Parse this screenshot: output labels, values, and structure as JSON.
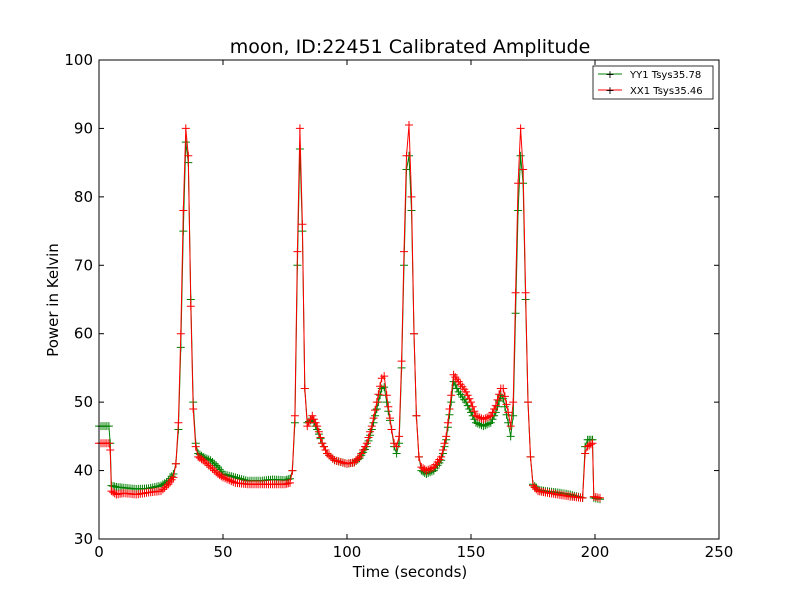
{
  "chart_data": {
    "type": "line",
    "title": "moon, ID:22451 Calibrated Amplitude",
    "xlabel": "Time (seconds)",
    "ylabel": "Power in Kelvin",
    "xlim": [
      0,
      250
    ],
    "ylim": [
      30,
      100
    ],
    "xticks": [
      0,
      50,
      100,
      150,
      200,
      250
    ],
    "yticks": [
      30,
      40,
      50,
      60,
      70,
      80,
      90,
      100
    ],
    "grid": false,
    "legend_position": "top-right",
    "marker": "+",
    "series": [
      {
        "name": "YY1 Tsys35.78",
        "color": "#008000",
        "points": [
          [
            0,
            46.5
          ],
          [
            4,
            46.5
          ],
          [
            4.5,
            44
          ],
          [
            5,
            37.8
          ],
          [
            7,
            37.6
          ],
          [
            10,
            37.5
          ],
          [
            15,
            37.3
          ],
          [
            20,
            37.4
          ],
          [
            25,
            37.8
          ],
          [
            28,
            38.5
          ],
          [
            30,
            39.5
          ],
          [
            31,
            41
          ],
          [
            32,
            46
          ],
          [
            33,
            58
          ],
          [
            34,
            75
          ],
          [
            35,
            88
          ],
          [
            36,
            85
          ],
          [
            37,
            65
          ],
          [
            38,
            50
          ],
          [
            39,
            44
          ],
          [
            40,
            42.5
          ],
          [
            42,
            42
          ],
          [
            45,
            41.5
          ],
          [
            48,
            40.5
          ],
          [
            50,
            39.5
          ],
          [
            55,
            39
          ],
          [
            60,
            38.5
          ],
          [
            65,
            38.5
          ],
          [
            70,
            38.7
          ],
          [
            75,
            38.6
          ],
          [
            77,
            38.8
          ],
          [
            78,
            40
          ],
          [
            79,
            47
          ],
          [
            80,
            70
          ],
          [
            81,
            87
          ],
          [
            82,
            75
          ],
          [
            83,
            52
          ],
          [
            84,
            47
          ],
          [
            86,
            47.5
          ],
          [
            88,
            46
          ],
          [
            90,
            44
          ],
          [
            92,
            42.5
          ],
          [
            95,
            41.5
          ],
          [
            100,
            41
          ],
          [
            103,
            41.2
          ],
          [
            105,
            41.8
          ],
          [
            108,
            43.5
          ],
          [
            110,
            46
          ],
          [
            112,
            49
          ],
          [
            114,
            52
          ],
          [
            115,
            52.2
          ],
          [
            116,
            50
          ],
          [
            118,
            46
          ],
          [
            119,
            43.5
          ],
          [
            120,
            42.5
          ],
          [
            121,
            44
          ],
          [
            122,
            55
          ],
          [
            123,
            70
          ],
          [
            124,
            84
          ],
          [
            125,
            86
          ],
          [
            126,
            78
          ],
          [
            127,
            60
          ],
          [
            128,
            48
          ],
          [
            129,
            42
          ],
          [
            130,
            40
          ],
          [
            132,
            39.5
          ],
          [
            135,
            40
          ],
          [
            138,
            41.5
          ],
          [
            140,
            44.5
          ],
          [
            142,
            50
          ],
          [
            143,
            53
          ],
          [
            145,
            51.5
          ],
          [
            148,
            50
          ],
          [
            150,
            48.5
          ],
          [
            152,
            47
          ],
          [
            155,
            46.5
          ],
          [
            158,
            47
          ],
          [
            160,
            48.5
          ],
          [
            162,
            51
          ],
          [
            163,
            50.5
          ],
          [
            165,
            47
          ],
          [
            166,
            45
          ],
          [
            167,
            48
          ],
          [
            168,
            63
          ],
          [
            169,
            78
          ],
          [
            170,
            86
          ],
          [
            171,
            82
          ],
          [
            172,
            65
          ],
          [
            173,
            50
          ],
          [
            174,
            42
          ],
          [
            175,
            38
          ],
          [
            177,
            37.2
          ],
          [
            180,
            37
          ],
          [
            185,
            36.8
          ],
          [
            190,
            36.5
          ],
          [
            195,
            36
          ],
          [
            196,
            43.5
          ],
          [
            197,
            44.5
          ],
          [
            199,
            44.5
          ],
          [
            199.5,
            36
          ],
          [
            202,
            35.8
          ]
        ]
      },
      {
        "name": "XX1 Tsys35.46",
        "color": "#ff0000",
        "points": [
          [
            0,
            44
          ],
          [
            4,
            44
          ],
          [
            4.5,
            43
          ],
          [
            5,
            37
          ],
          [
            7,
            36.5
          ],
          [
            10,
            36.7
          ],
          [
            15,
            36.5
          ],
          [
            20,
            36.8
          ],
          [
            25,
            37
          ],
          [
            28,
            38
          ],
          [
            30,
            39
          ],
          [
            31,
            41
          ],
          [
            32,
            47
          ],
          [
            33,
            60
          ],
          [
            34,
            78
          ],
          [
            35,
            90
          ],
          [
            36,
            86
          ],
          [
            37,
            64
          ],
          [
            38,
            49
          ],
          [
            39,
            43.5
          ],
          [
            40,
            42
          ],
          [
            42,
            41.5
          ],
          [
            45,
            40.5
          ],
          [
            48,
            39.5
          ],
          [
            50,
            39
          ],
          [
            55,
            38.2
          ],
          [
            60,
            38
          ],
          [
            65,
            38
          ],
          [
            70,
            38
          ],
          [
            75,
            38
          ],
          [
            77,
            38.2
          ],
          [
            78,
            40
          ],
          [
            79,
            48
          ],
          [
            80,
            72
          ],
          [
            81,
            90
          ],
          [
            82,
            76
          ],
          [
            83,
            52
          ],
          [
            84,
            46.5
          ],
          [
            86,
            48
          ],
          [
            88,
            46.5
          ],
          [
            90,
            44
          ],
          [
            92,
            42.5
          ],
          [
            95,
            41.5
          ],
          [
            100,
            41
          ],
          [
            103,
            41.2
          ],
          [
            105,
            42
          ],
          [
            108,
            44
          ],
          [
            110,
            46.5
          ],
          [
            112,
            50
          ],
          [
            114,
            53.5
          ],
          [
            115,
            53.8
          ],
          [
            116,
            51
          ],
          [
            118,
            46
          ],
          [
            119,
            44
          ],
          [
            120,
            43.5
          ],
          [
            121,
            45
          ],
          [
            122,
            56
          ],
          [
            123,
            72
          ],
          [
            124,
            86
          ],
          [
            125,
            90.5
          ],
          [
            126,
            80
          ],
          [
            127,
            60
          ],
          [
            128,
            48
          ],
          [
            129,
            42
          ],
          [
            130,
            40.5
          ],
          [
            132,
            40
          ],
          [
            135,
            40.5
          ],
          [
            138,
            42
          ],
          [
            140,
            45
          ],
          [
            142,
            51
          ],
          [
            143,
            54
          ],
          [
            145,
            53
          ],
          [
            148,
            51.5
          ],
          [
            150,
            50
          ],
          [
            152,
            48
          ],
          [
            155,
            47.5
          ],
          [
            158,
            48
          ],
          [
            160,
            49.5
          ],
          [
            162,
            52
          ],
          [
            163,
            52
          ],
          [
            165,
            48.5
          ],
          [
            166,
            46.5
          ],
          [
            167,
            50
          ],
          [
            168,
            66
          ],
          [
            169,
            82
          ],
          [
            170,
            90
          ],
          [
            171,
            84
          ],
          [
            172,
            66
          ],
          [
            173,
            50
          ],
          [
            174,
            42
          ],
          [
            175,
            37.8
          ],
          [
            177,
            37
          ],
          [
            180,
            36.8
          ],
          [
            185,
            36.5
          ],
          [
            190,
            36.2
          ],
          [
            195,
            36
          ],
          [
            196,
            42.5
          ],
          [
            197,
            43.5
          ],
          [
            199,
            44
          ],
          [
            199.5,
            36.2
          ],
          [
            202,
            36
          ]
        ]
      }
    ]
  }
}
